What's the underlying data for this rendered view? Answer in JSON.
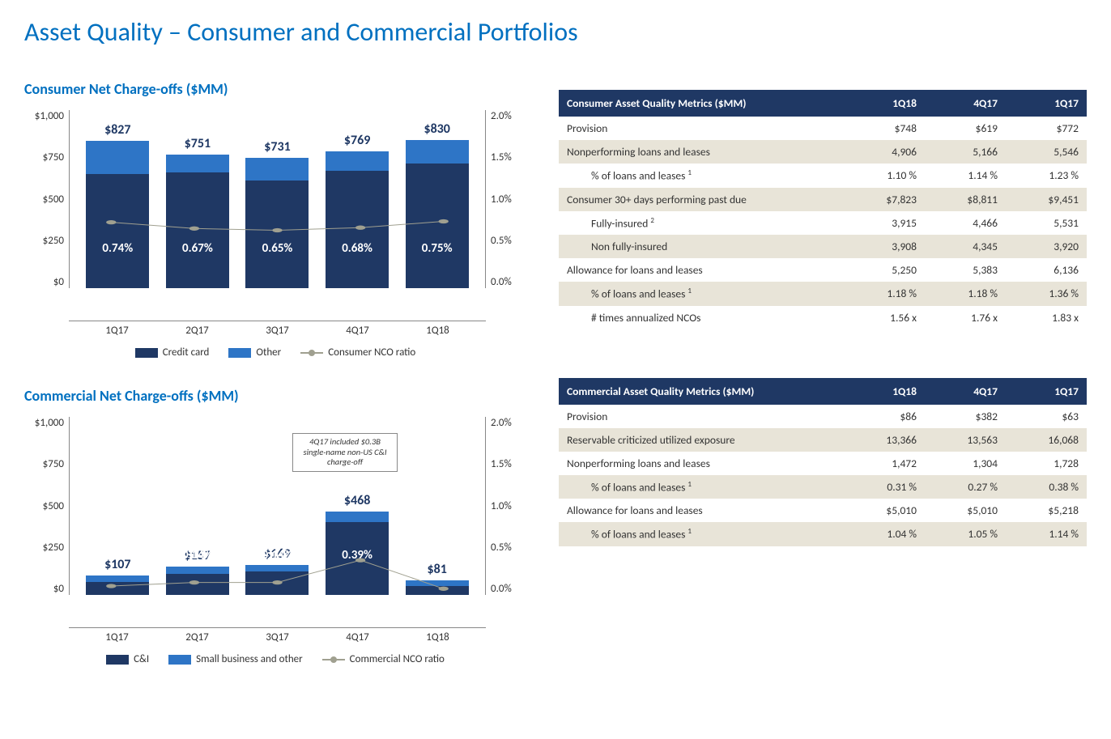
{
  "page_title": "Asset Quality – Consumer and Commercial Portfolios",
  "color_title": "#0070c0",
  "color_bar_primary": "#1f3864",
  "color_bar_secondary": "#2e75c6",
  "color_line": "#a0a090",
  "color_table_header_bg": "#1f3864",
  "color_table_shade": "#e8e4d8",
  "consumer_chart": {
    "title": "Consumer Net Charge-offs ($MM)",
    "y_left_max": 1000,
    "y_left_ticks": [
      "$1,000",
      "$750",
      "$500",
      "$250",
      "$0"
    ],
    "y_right_max": 2.0,
    "y_right_ticks": [
      "2.0%",
      "1.5%",
      "1.0%",
      "0.5%",
      "0.0%"
    ],
    "categories": [
      "1Q17",
      "2Q17",
      "3Q17",
      "4Q17",
      "1Q18"
    ],
    "series1_name": "Credit card",
    "series2_name": "Other",
    "line_name": "Consumer NCO ratio",
    "series1": [
      640,
      650,
      605,
      660,
      700
    ],
    "series2": [
      187,
      101,
      126,
      109,
      130
    ],
    "totals": [
      "$827",
      "$751",
      "$731",
      "$769",
      "$830"
    ],
    "line_values": [
      0.74,
      0.67,
      0.65,
      0.68,
      0.75
    ],
    "line_labels": [
      "0.74%",
      "0.67%",
      "0.65%",
      "0.68%",
      "0.75%"
    ]
  },
  "commercial_chart": {
    "title": "Commercial Net Charge-offs ($MM)",
    "y_left_max": 1000,
    "y_left_ticks": [
      "$1,000",
      "$750",
      "$500",
      "$250",
      "$0"
    ],
    "y_right_max": 2.0,
    "y_right_ticks": [
      "2.0%",
      "1.5%",
      "1.0%",
      "0.5%",
      "0.0%"
    ],
    "categories": [
      "1Q17",
      "2Q17",
      "3Q17",
      "4Q17",
      "1Q18"
    ],
    "series1_name": "C&I",
    "series2_name": "Small business and other",
    "line_name": "Commercial NCO ratio",
    "series1": [
      75,
      120,
      130,
      410,
      50
    ],
    "series2": [
      32,
      37,
      39,
      58,
      31
    ],
    "totals": [
      "$107",
      "$157",
      "$169",
      "$468",
      "$81"
    ],
    "line_values": [
      0.1,
      0.14,
      0.14,
      0.39,
      0.07
    ],
    "line_labels": [
      "0.10%",
      "0.14%",
      "0.14%",
      "0.39%",
      "0.07%"
    ],
    "annotation": "4Q17 included $0.3B single-name non-US C&I charge-off"
  },
  "consumer_table": {
    "header": [
      "Consumer Asset Quality Metrics ($MM)",
      "1Q18",
      "4Q17",
      "1Q17"
    ],
    "rows": [
      {
        "label": "Provision",
        "v": [
          "$748",
          "$619",
          "$772"
        ],
        "shade": false,
        "indent": false
      },
      {
        "label": "Nonperforming loans and leases",
        "v": [
          "4,906",
          "5,166",
          "5,546"
        ],
        "shade": true,
        "indent": false
      },
      {
        "label_html": "% of loans and leases <sup>1</sup>",
        "v": [
          "1.10  %",
          "1.14  %",
          "1.23  %"
        ],
        "shade": false,
        "indent": true
      },
      {
        "label": "Consumer 30+ days performing past due",
        "v": [
          "$7,823",
          "$8,811",
          "$9,451"
        ],
        "shade": true,
        "indent": false
      },
      {
        "label_html": "Fully-insured <sup>2</sup>",
        "v": [
          "3,915",
          "4,466",
          "5,531"
        ],
        "shade": false,
        "indent": true
      },
      {
        "label": "Non fully-insured",
        "v": [
          "3,908",
          "4,345",
          "3,920"
        ],
        "shade": true,
        "indent": true
      },
      {
        "label": "Allowance for loans and leases",
        "v": [
          "5,250",
          "5,383",
          "6,136"
        ],
        "shade": false,
        "indent": false
      },
      {
        "label_html": "% of loans and leases <sup>1</sup>",
        "v": [
          "1.18  %",
          "1.18  %",
          "1.36  %"
        ],
        "shade": true,
        "indent": true
      },
      {
        "label": "# times annualized NCOs",
        "v": [
          "1.56  x",
          "1.76  x",
          "1.83  x"
        ],
        "shade": false,
        "indent": true
      }
    ]
  },
  "commercial_table": {
    "header": [
      "Commercial Asset Quality Metrics ($MM)",
      "1Q18",
      "4Q17",
      "1Q17"
    ],
    "rows": [
      {
        "label": "Provision",
        "v": [
          "$86",
          "$382",
          "$63"
        ],
        "shade": false,
        "indent": false
      },
      {
        "label": "Reservable criticized utilized exposure",
        "v": [
          "13,366",
          "13,563",
          "16,068"
        ],
        "shade": true,
        "indent": false
      },
      {
        "label": "Nonperforming loans and leases",
        "v": [
          "1,472",
          "1,304",
          "1,728"
        ],
        "shade": false,
        "indent": false
      },
      {
        "label_html": "% of loans and leases <sup>1</sup>",
        "v": [
          "0.31  %",
          "0.27  %",
          "0.38  %"
        ],
        "shade": true,
        "indent": true
      },
      {
        "label": "Allowance for loans and leases",
        "v": [
          "$5,010",
          "$5,010",
          "$5,218"
        ],
        "shade": false,
        "indent": false
      },
      {
        "label_html": "% of loans and leases <sup>1</sup>",
        "v": [
          "1.04  %",
          "1.05  %",
          "1.14  %"
        ],
        "shade": true,
        "indent": true
      }
    ]
  }
}
